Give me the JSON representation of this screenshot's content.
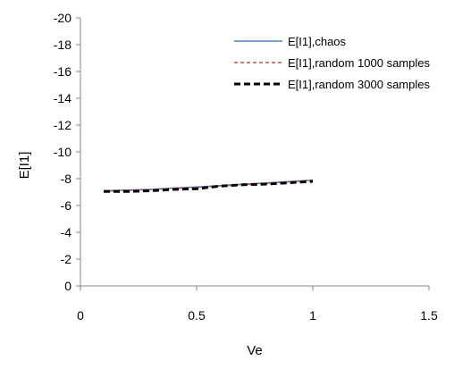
{
  "chart_data": {
    "type": "line",
    "title": "",
    "xlabel": "Ve",
    "ylabel": "E[I1]",
    "xlim": [
      0,
      1.5
    ],
    "ylim": [
      0,
      -20
    ],
    "y_axis_reversed": true,
    "x_ticks": [
      0,
      0.5,
      1,
      1.5
    ],
    "x_tick_labels": [
      "0",
      "0.5",
      "1",
      "1.5"
    ],
    "y_ticks": [
      -20,
      -18,
      -16,
      -14,
      -12,
      -10,
      -8,
      -6,
      -4,
      -2,
      0
    ],
    "y_tick_labels": [
      "-20",
      "-18",
      "-16",
      "-14",
      "-12",
      "-10",
      "-8",
      "-6",
      "-4",
      "-2",
      "0"
    ],
    "grid": false,
    "legend_position": "top-right",
    "series": [
      {
        "name": "E[I1],chaos",
        "color": "#4F81BD",
        "style": "solid",
        "x": [
          0.1,
          0.2,
          0.3,
          0.4,
          0.5,
          0.6,
          0.7,
          0.8,
          0.9,
          1.0
        ],
        "y": [
          -7.1,
          -7.15,
          -7.2,
          -7.3,
          -7.38,
          -7.48,
          -7.58,
          -7.68,
          -7.78,
          -7.9
        ]
      },
      {
        "name": "E[I1],random 1000 samples",
        "color": "#C0504D",
        "style": "dashed",
        "x": [
          0.1,
          0.2,
          0.3,
          0.4,
          0.5,
          0.6,
          0.7,
          0.8,
          0.9,
          1.0
        ],
        "y": [
          -7.08,
          -7.12,
          -7.18,
          -7.27,
          -7.35,
          -7.46,
          -7.56,
          -7.66,
          -7.76,
          -7.87
        ]
      },
      {
        "name": "E[I1],random 3000 samples",
        "color": "#000000",
        "style": "dashed",
        "x": [
          0.1,
          0.2,
          0.3,
          0.4,
          0.5,
          0.6,
          0.7,
          0.8,
          0.9,
          1.0
        ],
        "y": [
          -7.05,
          -7.05,
          -7.1,
          -7.2,
          -7.25,
          -7.45,
          -7.55,
          -7.6,
          -7.7,
          -7.8
        ]
      }
    ]
  }
}
